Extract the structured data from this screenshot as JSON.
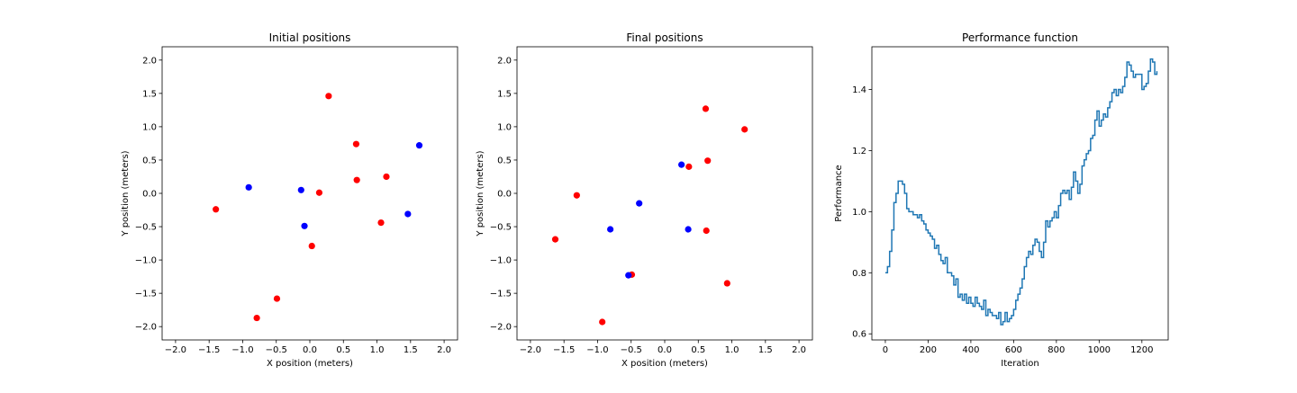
{
  "chart_data": [
    {
      "type": "scatter",
      "title": "Initial positions",
      "xlabel": "X position (meters)",
      "ylabel": "Y position (meters)",
      "xlim": [
        -2.2,
        2.2
      ],
      "ylim": [
        -2.2,
        2.2
      ],
      "xticks": [
        -2.0,
        -1.5,
        -1.0,
        -0.5,
        0.0,
        0.5,
        1.0,
        1.5,
        2.0
      ],
      "yticks": [
        -2.0,
        -1.5,
        -1.0,
        -0.5,
        0.0,
        0.5,
        1.0,
        1.5,
        2.0
      ],
      "xtick_labels": [
        "−2.0",
        "−1.5",
        "−1.0",
        "−0.5",
        "0.0",
        "0.5",
        "1.0",
        "1.5",
        "2.0"
      ],
      "ytick_labels": [
        "−2.0",
        "−1.5",
        "−1.0",
        "−0.5",
        "0.0",
        "0.5",
        "1.0",
        "1.5",
        "2.0"
      ],
      "grid": false,
      "series": [
        {
          "color": "#ff0000",
          "points": [
            [
              0.28,
              1.46
            ],
            [
              0.69,
              0.74
            ],
            [
              0.7,
              0.2
            ],
            [
              1.14,
              0.25
            ],
            [
              0.14,
              0.01
            ],
            [
              -1.4,
              -0.24
            ],
            [
              1.06,
              -0.44
            ],
            [
              0.03,
              -0.79
            ],
            [
              -0.49,
              -1.58
            ],
            [
              -0.79,
              -1.87
            ]
          ]
        },
        {
          "color": "#0000ff",
          "points": [
            [
              1.63,
              0.72
            ],
            [
              -0.91,
              0.09
            ],
            [
              -0.13,
              0.05
            ],
            [
              -0.08,
              -0.49
            ],
            [
              1.46,
              -0.31
            ]
          ]
        }
      ]
    },
    {
      "type": "scatter",
      "title": "Final positions",
      "xlabel": "X position (meters)",
      "ylabel": "Y position (meters)",
      "xlim": [
        -2.2,
        2.2
      ],
      "ylim": [
        -2.2,
        2.2
      ],
      "xticks": [
        -2.0,
        -1.5,
        -1.0,
        -0.5,
        0.0,
        0.5,
        1.0,
        1.5,
        2.0
      ],
      "yticks": [
        -2.0,
        -1.5,
        -1.0,
        -0.5,
        0.0,
        0.5,
        1.0,
        1.5,
        2.0
      ],
      "xtick_labels": [
        "−2.0",
        "−1.5",
        "−1.0",
        "−0.5",
        "0.0",
        "0.5",
        "1.0",
        "1.5",
        "2.0"
      ],
      "ytick_labels": [
        "−2.0",
        "−1.5",
        "−1.0",
        "−0.5",
        "0.0",
        "0.5",
        "1.0",
        "1.5",
        "2.0"
      ],
      "grid": false,
      "series": [
        {
          "color": "#ff0000",
          "points": [
            [
              0.61,
              1.27
            ],
            [
              1.19,
              0.96
            ],
            [
              0.64,
              0.49
            ],
            [
              0.36,
              0.4
            ],
            [
              -1.31,
              -0.03
            ],
            [
              0.62,
              -0.56
            ],
            [
              -1.63,
              -0.69
            ],
            [
              -0.49,
              -1.22
            ],
            [
              0.93,
              -1.35
            ],
            [
              -0.93,
              -1.93
            ]
          ]
        },
        {
          "color": "#0000ff",
          "points": [
            [
              0.25,
              0.43
            ],
            [
              -0.38,
              -0.15
            ],
            [
              -0.81,
              -0.54
            ],
            [
              0.35,
              -0.54
            ],
            [
              -0.54,
              -1.23
            ]
          ]
        }
      ]
    },
    {
      "type": "line",
      "title": "Performance function",
      "xlabel": "Iteration",
      "ylabel": "Performance",
      "xlim": [
        -63,
        1323
      ],
      "ylim": [
        0.58,
        1.54
      ],
      "xticks": [
        0,
        200,
        400,
        600,
        800,
        1000,
        1200
      ],
      "yticks": [
        0.6,
        0.8,
        1.0,
        1.2,
        1.4
      ],
      "xtick_labels": [
        "0",
        "200",
        "400",
        "600",
        "800",
        "1000",
        "1200"
      ],
      "ytick_labels": [
        "0.6",
        "0.8",
        "1.0",
        "1.2",
        "1.4"
      ],
      "grid": false,
      "series": [
        {
          "color": "#1f77b4",
          "step": true,
          "points": [
            [
              0,
              0.8
            ],
            [
              10,
              0.82
            ],
            [
              20,
              0.87
            ],
            [
              30,
              0.94
            ],
            [
              40,
              1.03
            ],
            [
              50,
              1.06
            ],
            [
              60,
              1.1
            ],
            [
              70,
              1.1
            ],
            [
              80,
              1.09
            ],
            [
              90,
              1.06
            ],
            [
              100,
              1.01
            ],
            [
              110,
              1.0
            ],
            [
              120,
              1.0
            ],
            [
              130,
              0.99
            ],
            [
              140,
              0.99
            ],
            [
              150,
              0.98
            ],
            [
              160,
              0.99
            ],
            [
              170,
              0.97
            ],
            [
              180,
              0.96
            ],
            [
              190,
              0.94
            ],
            [
              200,
              0.93
            ],
            [
              210,
              0.92
            ],
            [
              220,
              0.91
            ],
            [
              230,
              0.88
            ],
            [
              240,
              0.89
            ],
            [
              250,
              0.86
            ],
            [
              260,
              0.84
            ],
            [
              270,
              0.83
            ],
            [
              280,
              0.85
            ],
            [
              290,
              0.8
            ],
            [
              300,
              0.8
            ],
            [
              310,
              0.79
            ],
            [
              320,
              0.76
            ],
            [
              330,
              0.78
            ],
            [
              340,
              0.72
            ],
            [
              350,
              0.73
            ],
            [
              360,
              0.71
            ],
            [
              370,
              0.73
            ],
            [
              380,
              0.7
            ],
            [
              390,
              0.72
            ],
            [
              400,
              0.7
            ],
            [
              410,
              0.69
            ],
            [
              420,
              0.72
            ],
            [
              430,
              0.7
            ],
            [
              440,
              0.69
            ],
            [
              450,
              0.68
            ],
            [
              460,
              0.71
            ],
            [
              470,
              0.66
            ],
            [
              480,
              0.68
            ],
            [
              490,
              0.67
            ],
            [
              500,
              0.66
            ],
            [
              510,
              0.66
            ],
            [
              520,
              0.65
            ],
            [
              530,
              0.67
            ],
            [
              540,
              0.63
            ],
            [
              550,
              0.64
            ],
            [
              560,
              0.67
            ],
            [
              570,
              0.64
            ],
            [
              580,
              0.65
            ],
            [
              590,
              0.66
            ],
            [
              600,
              0.68
            ],
            [
              610,
              0.71
            ],
            [
              620,
              0.73
            ],
            [
              630,
              0.75
            ],
            [
              640,
              0.78
            ],
            [
              650,
              0.82
            ],
            [
              660,
              0.85
            ],
            [
              670,
              0.87
            ],
            [
              680,
              0.86
            ],
            [
              690,
              0.89
            ],
            [
              700,
              0.91
            ],
            [
              710,
              0.9
            ],
            [
              720,
              0.87
            ],
            [
              730,
              0.85
            ],
            [
              740,
              0.9
            ],
            [
              750,
              0.97
            ],
            [
              760,
              0.95
            ],
            [
              770,
              0.97
            ],
            [
              780,
              0.98
            ],
            [
              790,
              1.0
            ],
            [
              800,
              0.98
            ],
            [
              810,
              1.02
            ],
            [
              820,
              1.06
            ],
            [
              830,
              1.07
            ],
            [
              840,
              1.06
            ],
            [
              850,
              1.07
            ],
            [
              860,
              1.04
            ],
            [
              870,
              1.08
            ],
            [
              880,
              1.13
            ],
            [
              890,
              1.1
            ],
            [
              900,
              1.06
            ],
            [
              910,
              1.09
            ],
            [
              920,
              1.15
            ],
            [
              930,
              1.17
            ],
            [
              940,
              1.19
            ],
            [
              950,
              1.2
            ],
            [
              960,
              1.24
            ],
            [
              970,
              1.25
            ],
            [
              980,
              1.3
            ],
            [
              990,
              1.33
            ],
            [
              1000,
              1.28
            ],
            [
              1010,
              1.3
            ],
            [
              1020,
              1.32
            ],
            [
              1030,
              1.31
            ],
            [
              1040,
              1.34
            ],
            [
              1050,
              1.36
            ],
            [
              1060,
              1.39
            ],
            [
              1070,
              1.4
            ],
            [
              1080,
              1.38
            ],
            [
              1090,
              1.4
            ],
            [
              1100,
              1.39
            ],
            [
              1110,
              1.41
            ],
            [
              1120,
              1.44
            ],
            [
              1130,
              1.49
            ],
            [
              1140,
              1.48
            ],
            [
              1150,
              1.46
            ],
            [
              1160,
              1.44
            ],
            [
              1170,
              1.45
            ],
            [
              1180,
              1.45
            ],
            [
              1190,
              1.45
            ],
            [
              1200,
              1.4
            ],
            [
              1210,
              1.41
            ],
            [
              1220,
              1.42
            ],
            [
              1230,
              1.46
            ],
            [
              1240,
              1.5
            ],
            [
              1250,
              1.49
            ],
            [
              1260,
              1.45
            ],
            [
              1270,
              1.46
            ]
          ]
        }
      ]
    }
  ]
}
